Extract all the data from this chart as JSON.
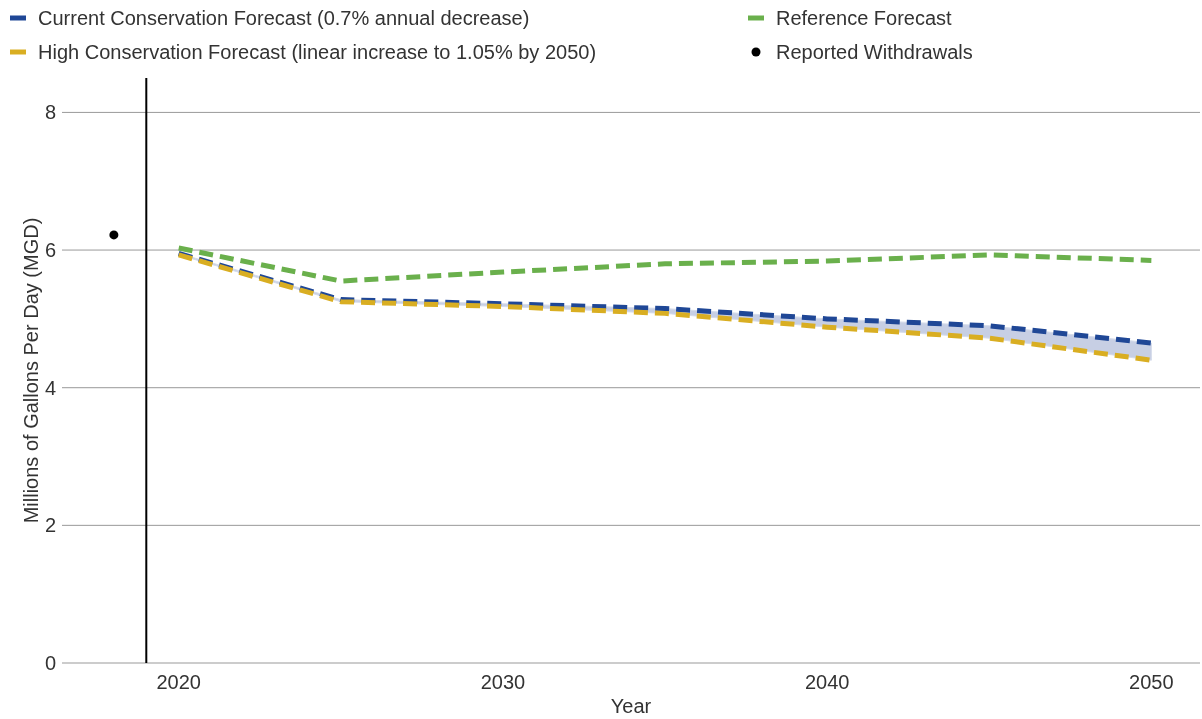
{
  "chart_data": {
    "type": "line",
    "xlabel": "Year",
    "ylabel": "Millions of Gallons Per Day (MGD)",
    "xlim": [
      2016.4,
      2051.5
    ],
    "ylim": [
      0,
      8.5
    ],
    "xticks": [
      2020,
      2030,
      2040,
      2050
    ],
    "yticks": [
      0,
      2,
      4,
      6,
      8
    ],
    "grid": "y",
    "legend": "top",
    "line_style": "dashed",
    "ref_lines": [
      {
        "axis": "x",
        "value": 2019,
        "color": "#000000"
      }
    ],
    "series": [
      {
        "name": "Current Conservation Forecast (0.7% annual decrease)",
        "color": "#1f4796",
        "x": [
          2020,
          2025,
          2030,
          2035,
          2040,
          2045,
          2050
        ],
        "values": [
          5.95,
          5.28,
          5.22,
          5.15,
          5.0,
          4.9,
          4.65
        ],
        "lower": [
          5.93,
          5.25,
          5.18,
          5.08,
          4.88,
          4.72,
          4.4
        ],
        "upper": [
          5.95,
          5.28,
          5.22,
          5.15,
          5.0,
          4.9,
          4.65
        ]
      },
      {
        "name": "High Conservation Forecast (linear increase to 1.05% by 2050)",
        "color": "#d9ae22",
        "x": [
          2020,
          2025,
          2030,
          2035,
          2040,
          2045,
          2050
        ],
        "values": [
          5.93,
          5.25,
          5.18,
          5.08,
          4.88,
          4.72,
          4.4
        ]
      },
      {
        "name": "Reference Forecast",
        "color": "#6ab04c",
        "x": [
          2020,
          2025,
          2030,
          2035,
          2040,
          2045,
          2050
        ],
        "values": [
          6.03,
          5.55,
          5.68,
          5.8,
          5.84,
          5.93,
          5.85
        ]
      },
      {
        "name": "Reported Withdrawals",
        "type": "scatter",
        "marker": "circle",
        "color": "#000000",
        "x": [
          2018
        ],
        "values": [
          6.22
        ]
      }
    ]
  }
}
